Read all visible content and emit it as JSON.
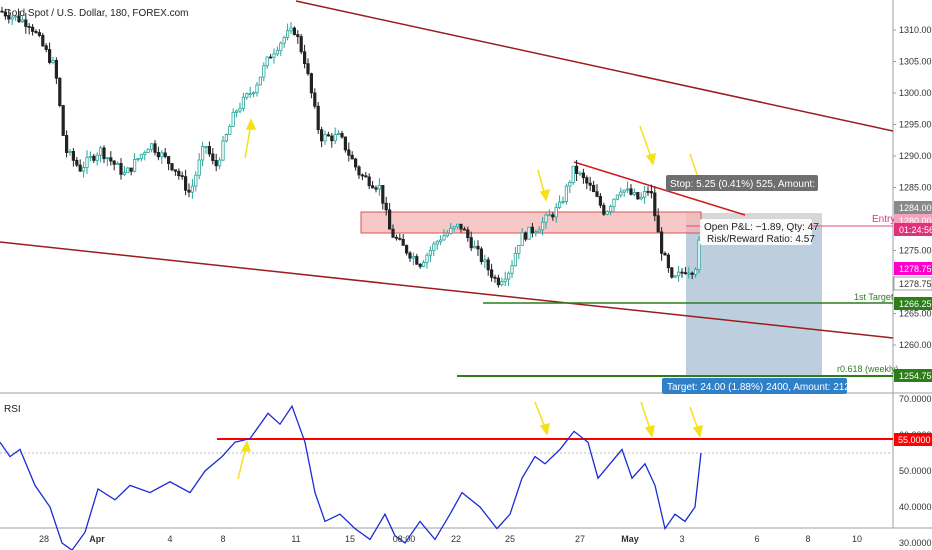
{
  "header": {
    "title": "Gold Spot / U.S. Dollar, 180, FOREX.com"
  },
  "rsi_panel": {
    "title": "RSI"
  },
  "colors": {
    "up": "#26a69a",
    "down": "#222222",
    "channel": "#9b1c1c",
    "trend": "#d11a1a",
    "zone_fill": "#f4b6b6",
    "zone_stroke": "#d9534f",
    "target_fill": "#a7bfd3",
    "target_line": "#2e7d1b",
    "rsi_line": "#1a2bd6",
    "rsi_level": "#ff0000",
    "arrow": "#f5e11a"
  },
  "price_axis": {
    "ticks": [
      "1310.00",
      "1305.00",
      "1300.00",
      "1295.00",
      "1290.00",
      "1285.00",
      "1280.00",
      "1275.00",
      "1270.00",
      "1265.00",
      "1260.00"
    ]
  },
  "rsi_axis": {
    "ticks": [
      "70.0000",
      "60.0000",
      "50.0000",
      "40.0000",
      "30.0000"
    ]
  },
  "time_axis": {
    "ticks": [
      "28",
      "Apr",
      "4",
      "8",
      "11",
      "15",
      "08:00",
      "22",
      "25",
      "27",
      "May",
      "3",
      "6",
      "8",
      "10"
    ]
  },
  "labels": {
    "entry": "Entry",
    "first_target": "1st Target",
    "fib": "r0.618 (weekly)",
    "stop": "Stop: 5.25 (0.41%) 525, Amount: 753.25",
    "pl_line1": "Open P&L: −1.89, Qty: 47",
    "pl_line2": "Risk/Reward Ratio: 4.57",
    "target": "Target: 24.00 (1.88%) 2400, Amount: 2128"
  },
  "badges": {
    "stop_price": "1284.00",
    "entry_price": "1280.00",
    "countdown": "01:24:56",
    "last_price": "1278.75",
    "bid_price": "1278.75",
    "first_target_price": "1266.25",
    "fib_price": "1254.75",
    "rsi_level": "55.0000"
  },
  "chart_data": {
    "type": "candlestick",
    "title": "Gold Spot / U.S. Dollar, 180, FOREX.com",
    "xlabel": "",
    "ylabel": "",
    "ylim": [
      1253,
      1314
    ],
    "legend": "none",
    "grid": false,
    "x": [
      "28",
      "Apr",
      "4",
      "8",
      "11",
      "15",
      "08:00",
      "22",
      "25",
      "27",
      "May",
      "3"
    ],
    "close": [
      1306.0,
      1290.5,
      1288.0,
      1297.0,
      1309.0,
      1292.0,
      1279.0,
      1276.5,
      1272.5,
      1286.0,
      1284.5,
      1278.75
    ],
    "levels": {
      "stop": 1284.0,
      "entry": 1280.0,
      "first_target": 1266.25,
      "fib_0618": 1254.75,
      "target": 1256.0
    },
    "rsi": {
      "ylim": [
        25,
        72
      ],
      "level": 55.0,
      "values": [
        58,
        45,
        29,
        44,
        48,
        60,
        68,
        40,
        30,
        38,
        46,
        54,
        58,
        60,
        48,
        58,
        36,
        42,
        55
      ]
    }
  }
}
